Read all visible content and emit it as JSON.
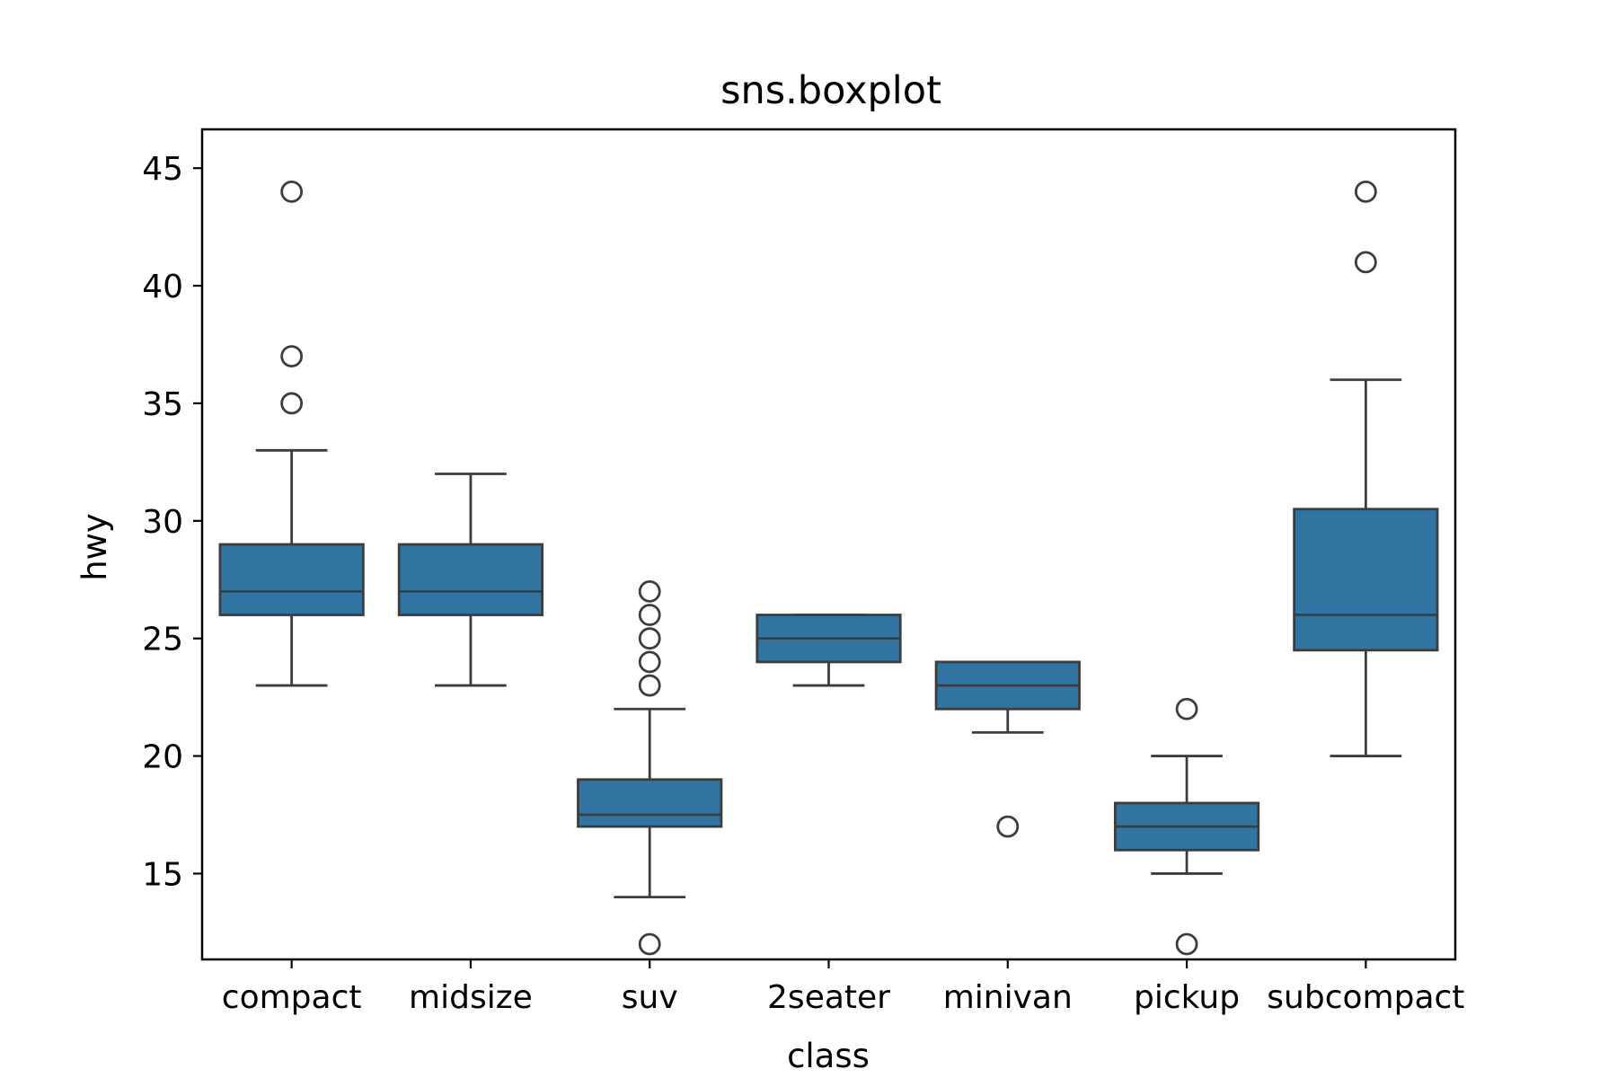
{
  "chart_data": {
    "type": "box",
    "title": "sns.boxplot",
    "xlabel": "class",
    "ylabel": "hwy",
    "ylim": [
      11.35,
      46.65
    ],
    "yticks": [
      15,
      20,
      25,
      30,
      35,
      40,
      45
    ],
    "categories": [
      "compact",
      "midsize",
      "suv",
      "2seater",
      "minivan",
      "pickup",
      "subcompact"
    ],
    "boxes": [
      {
        "category": "compact",
        "whisker_low": 23,
        "q1": 26,
        "median": 27,
        "q3": 29,
        "whisker_high": 33,
        "outliers": [
          35,
          37,
          44
        ]
      },
      {
        "category": "midsize",
        "whisker_low": 23,
        "q1": 26,
        "median": 27,
        "q3": 29,
        "whisker_high": 32,
        "outliers": []
      },
      {
        "category": "suv",
        "whisker_low": 14,
        "q1": 17,
        "median": 17.5,
        "q3": 19,
        "whisker_high": 22,
        "outliers": [
          12,
          23,
          24,
          25,
          26,
          27
        ]
      },
      {
        "category": "2seater",
        "whisker_low": 23,
        "q1": 24,
        "median": 25,
        "q3": 26,
        "whisker_high": 26,
        "outliers": []
      },
      {
        "category": "minivan",
        "whisker_low": 21,
        "q1": 22,
        "median": 23,
        "q3": 24,
        "whisker_high": 24,
        "outliers": [
          17
        ]
      },
      {
        "category": "pickup",
        "whisker_low": 15,
        "q1": 16,
        "median": 17,
        "q3": 18,
        "whisker_high": 20,
        "outliers": [
          12,
          22
        ]
      },
      {
        "category": "subcompact",
        "whisker_low": 20,
        "q1": 24.5,
        "median": 26,
        "q3": 30.5,
        "whisker_high": 36,
        "outliers": [
          41,
          44
        ]
      }
    ],
    "box_color": "#3274a1",
    "line_color": "#3d3d3d",
    "grid": false,
    "legend": "none"
  }
}
